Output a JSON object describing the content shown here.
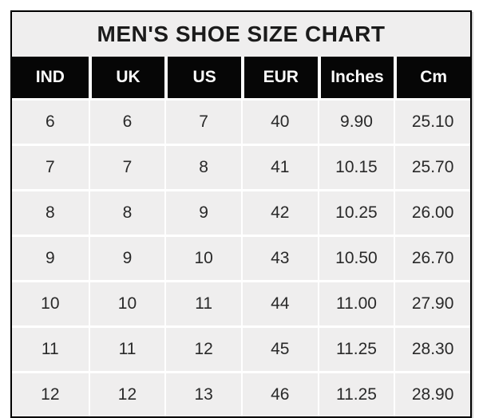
{
  "chart_data": {
    "type": "table",
    "title": "MEN'S SHOE SIZE CHART",
    "columns": [
      "IND",
      "UK",
      "US",
      "EUR",
      "Inches",
      "Cm"
    ],
    "rows": [
      [
        "6",
        "6",
        "7",
        "40",
        "9.90",
        "25.10"
      ],
      [
        "7",
        "7",
        "8",
        "41",
        "10.15",
        "25.70"
      ],
      [
        "8",
        "8",
        "9",
        "42",
        "10.25",
        "26.00"
      ],
      [
        "9",
        "9",
        "10",
        "43",
        "10.50",
        "26.70"
      ],
      [
        "10",
        "10",
        "11",
        "44",
        "11.00",
        "27.90"
      ],
      [
        "11",
        "11",
        "12",
        "45",
        "11.25",
        "28.30"
      ],
      [
        "12",
        "12",
        "13",
        "46",
        "11.25",
        "28.90"
      ]
    ],
    "layout_hints": {
      "legend": "none",
      "grid": "white cell separators on light gray cells"
    },
    "colors": {
      "outer_border": "#000000",
      "title_bg": "#efeeee",
      "title_text": "#1b1b1b",
      "header_bg": "#060606",
      "header_text": "#fcfcfc",
      "cell_bg": "#efeeee",
      "cell_text": "#292929",
      "gridline": "#ffffff",
      "page_bg": "#ffffff"
    }
  }
}
